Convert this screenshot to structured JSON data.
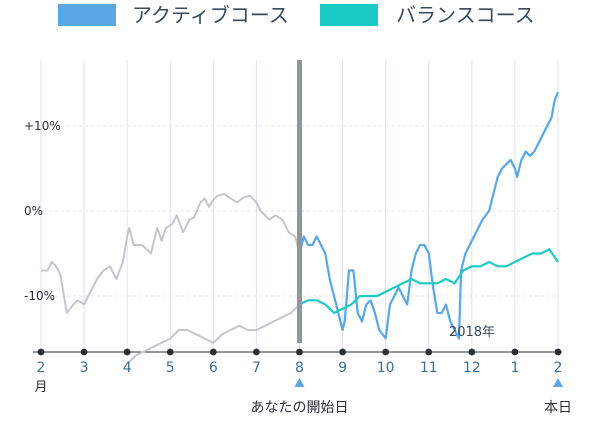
{
  "chart_data": {
    "type": "line",
    "legend": [
      {
        "name": "アクティブコース",
        "color": "#5aa7e4"
      },
      {
        "name": "バランスコース",
        "color": "#1ccbc5"
      }
    ],
    "y_ticks": [
      {
        "label": "+10%",
        "value": 10
      },
      {
        "label": "0%",
        "value": 0
      },
      {
        "label": "-10%",
        "value": -10
      }
    ],
    "x_ticks": [
      {
        "label": "2",
        "x": 0,
        "sub": "月"
      },
      {
        "label": "3",
        "x": 1
      },
      {
        "label": "4",
        "x": 2
      },
      {
        "label": "5",
        "x": 3
      },
      {
        "label": "6",
        "x": 4
      },
      {
        "label": "7",
        "x": 5
      },
      {
        "label": "8",
        "x": 6
      },
      {
        "label": "9",
        "x": 7
      },
      {
        "label": "10",
        "x": 8
      },
      {
        "label": "11",
        "x": 9
      },
      {
        "label": "12",
        "x": 10
      },
      {
        "label": "1",
        "x": 11
      },
      {
        "label": "2",
        "x": 12
      }
    ],
    "year_label": "2018年",
    "start_marker": {
      "x": 6,
      "label": "あなたの開始日"
    },
    "end_marker": {
      "x": 12,
      "label": "本日"
    },
    "ylim": [
      -18,
      18
    ],
    "xlim": [
      0,
      12
    ],
    "past_color": "#c3c7cc",
    "series": [
      {
        "name": "アクティブコース",
        "color": "#5aa7e4",
        "past_points": [
          [
            0,
            -7
          ],
          [
            0.15,
            -7
          ],
          [
            0.25,
            -6
          ],
          [
            0.35,
            -6.5
          ],
          [
            0.45,
            -7.5
          ],
          [
            0.6,
            -12
          ],
          [
            0.75,
            -11
          ],
          [
            0.85,
            -10.5
          ],
          [
            1,
            -11
          ],
          [
            1.1,
            -10
          ],
          [
            1.2,
            -9
          ],
          [
            1.3,
            -8
          ],
          [
            1.45,
            -7
          ],
          [
            1.6,
            -6.5
          ],
          [
            1.75,
            -8
          ],
          [
            1.9,
            -6
          ],
          [
            2,
            -3
          ],
          [
            2.05,
            -2
          ],
          [
            2.15,
            -4
          ],
          [
            2.35,
            -4
          ],
          [
            2.55,
            -5
          ],
          [
            2.7,
            -2
          ],
          [
            2.8,
            -3.5
          ],
          [
            2.9,
            -2
          ],
          [
            3.05,
            -1.5
          ],
          [
            3.15,
            -0.5
          ],
          [
            3.3,
            -2.5
          ],
          [
            3.45,
            -1
          ],
          [
            3.55,
            -0.8
          ],
          [
            3.7,
            1
          ],
          [
            3.8,
            1.5
          ],
          [
            3.9,
            0.5
          ],
          [
            4,
            1.3
          ],
          [
            4.1,
            1.8
          ],
          [
            4.25,
            2
          ],
          [
            4.4,
            1.5
          ],
          [
            4.55,
            1
          ],
          [
            4.7,
            1.6
          ],
          [
            4.85,
            1.8
          ],
          [
            5,
            1
          ],
          [
            5.1,
            0
          ],
          [
            5.3,
            -1
          ],
          [
            5.45,
            -0.5
          ],
          [
            5.6,
            -1
          ],
          [
            5.75,
            -2.5
          ],
          [
            5.9,
            -3
          ],
          [
            6,
            -5
          ]
        ],
        "points": [
          [
            6,
            -5
          ],
          [
            6.1,
            -3
          ],
          [
            6.2,
            -4
          ],
          [
            6.3,
            -4
          ],
          [
            6.4,
            -3
          ],
          [
            6.5,
            -4
          ],
          [
            6.6,
            -5
          ],
          [
            6.7,
            -8
          ],
          [
            6.8,
            -10
          ],
          [
            6.9,
            -12
          ],
          [
            7,
            -14
          ],
          [
            7.05,
            -13
          ],
          [
            7.15,
            -7
          ],
          [
            7.25,
            -7
          ],
          [
            7.35,
            -12
          ],
          [
            7.45,
            -13
          ],
          [
            7.55,
            -11
          ],
          [
            7.65,
            -10.5
          ],
          [
            7.75,
            -12
          ],
          [
            7.85,
            -14
          ],
          [
            8,
            -15
          ],
          [
            8.1,
            -11
          ],
          [
            8.2,
            -10
          ],
          [
            8.3,
            -9
          ],
          [
            8.4,
            -10
          ],
          [
            8.5,
            -11
          ],
          [
            8.6,
            -7
          ],
          [
            8.7,
            -5
          ],
          [
            8.8,
            -4
          ],
          [
            8.9,
            -4
          ],
          [
            9,
            -5
          ],
          [
            9.1,
            -9
          ],
          [
            9.2,
            -12
          ],
          [
            9.3,
            -12
          ],
          [
            9.4,
            -11
          ],
          [
            9.5,
            -13
          ],
          [
            9.6,
            -14
          ],
          [
            9.7,
            -15
          ],
          [
            9.75,
            -7
          ],
          [
            9.85,
            -5
          ],
          [
            9.95,
            -4
          ],
          [
            10.05,
            -3
          ],
          [
            10.15,
            -2
          ],
          [
            10.25,
            -1
          ],
          [
            10.4,
            0
          ],
          [
            10.5,
            2
          ],
          [
            10.6,
            4
          ],
          [
            10.7,
            5
          ],
          [
            10.8,
            5.5
          ],
          [
            10.9,
            6
          ],
          [
            11,
            5
          ],
          [
            11.05,
            4
          ],
          [
            11.15,
            6
          ],
          [
            11.25,
            7
          ],
          [
            11.35,
            6.5
          ],
          [
            11.45,
            7
          ],
          [
            11.55,
            8
          ],
          [
            11.65,
            9
          ],
          [
            11.75,
            10
          ],
          [
            11.85,
            11
          ],
          [
            11.92,
            13
          ],
          [
            12,
            14
          ]
        ]
      },
      {
        "name": "バランスコース",
        "color": "#1ccbc5",
        "past_points": [
          [
            2,
            -18
          ],
          [
            2.2,
            -17
          ],
          [
            2.4,
            -16.5
          ],
          [
            2.6,
            -16
          ],
          [
            2.8,
            -15.5
          ],
          [
            3,
            -15
          ],
          [
            3.2,
            -14
          ],
          [
            3.4,
            -14
          ],
          [
            3.6,
            -14.5
          ],
          [
            3.8,
            -15
          ],
          [
            4,
            -15.5
          ],
          [
            4.2,
            -14.5
          ],
          [
            4.4,
            -14
          ],
          [
            4.6,
            -13.5
          ],
          [
            4.8,
            -14
          ],
          [
            5,
            -14
          ],
          [
            5.2,
            -13.5
          ],
          [
            5.4,
            -13
          ],
          [
            5.6,
            -12.5
          ],
          [
            5.8,
            -12
          ],
          [
            6,
            -11
          ]
        ],
        "points": [
          [
            6,
            -11
          ],
          [
            6.2,
            -10.5
          ],
          [
            6.4,
            -10.5
          ],
          [
            6.6,
            -11
          ],
          [
            6.8,
            -12
          ],
          [
            7,
            -11.5
          ],
          [
            7.2,
            -11
          ],
          [
            7.4,
            -10
          ],
          [
            7.6,
            -10
          ],
          [
            7.8,
            -10
          ],
          [
            8,
            -9.5
          ],
          [
            8.2,
            -9
          ],
          [
            8.4,
            -8.5
          ],
          [
            8.6,
            -8
          ],
          [
            8.8,
            -8.5
          ],
          [
            9,
            -8.5
          ],
          [
            9.2,
            -8.5
          ],
          [
            9.4,
            -8
          ],
          [
            9.6,
            -8.5
          ],
          [
            9.8,
            -7
          ],
          [
            10,
            -6.5
          ],
          [
            10.2,
            -6.5
          ],
          [
            10.4,
            -6
          ],
          [
            10.6,
            -6.5
          ],
          [
            10.8,
            -6.5
          ],
          [
            11,
            -6
          ],
          [
            11.2,
            -5.5
          ],
          [
            11.4,
            -5
          ],
          [
            11.6,
            -5
          ],
          [
            11.8,
            -4.5
          ],
          [
            12,
            -6
          ]
        ]
      }
    ]
  }
}
